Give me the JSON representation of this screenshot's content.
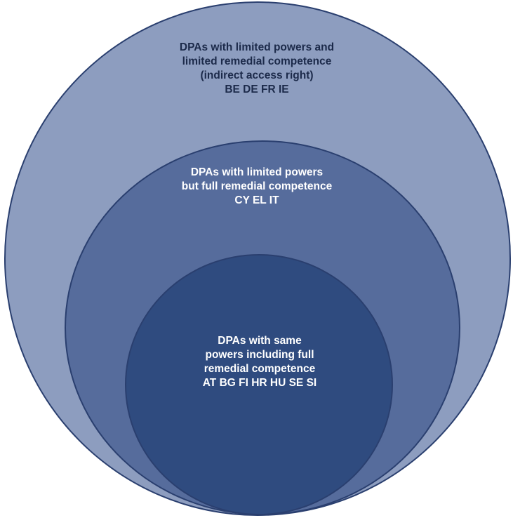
{
  "colors": {
    "outer_fill": "#8d9dbf",
    "middle_fill": "#566c9c",
    "inner_fill": "#2f4b7f",
    "outline": "#2a3f6f",
    "outer_text": "#1c2a4a",
    "inner_text": "#ffffff"
  },
  "outer": {
    "lines": [
      "DPAs with limited powers and",
      "limited remedial competence",
      "(indirect access right)",
      "BE DE FR IE"
    ]
  },
  "middle": {
    "lines": [
      "DPAs with limited powers",
      "but full remedial competence",
      "CY EL IT"
    ]
  },
  "inner": {
    "lines": [
      "DPAs with same",
      "powers including full",
      "remedial competence",
      "AT BG FI HR HU SE SI"
    ]
  }
}
